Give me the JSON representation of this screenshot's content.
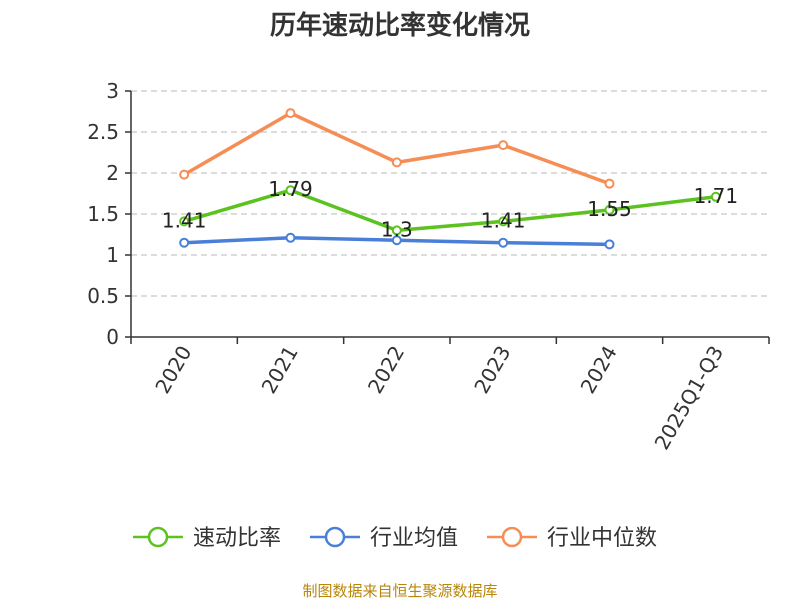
{
  "chart_data": {
    "type": "line",
    "title": "历年速动比率变化情况",
    "categories": [
      "2020",
      "2021",
      "2022",
      "2023",
      "2024",
      "2025Q1-Q3"
    ],
    "ylim": [
      0,
      3
    ],
    "yticks": [
      "0",
      "0.5",
      "1",
      "1.5",
      "2",
      "2.5",
      "3"
    ],
    "grid": true,
    "legend_position": "bottom",
    "series": [
      {
        "name": "速动比率",
        "color": "#5bc21f",
        "values": [
          1.41,
          1.79,
          1.3,
          1.41,
          1.55,
          1.71
        ],
        "labels": [
          "1.41",
          "1.79",
          "1.3",
          "1.41",
          "1.55",
          "1.71"
        ]
      },
      {
        "name": "行业均值",
        "color": "#4a7fd8",
        "values": [
          1.15,
          1.21,
          1.18,
          1.15,
          1.13,
          null
        ]
      },
      {
        "name": "行业中位数",
        "color": "#f58d55",
        "values": [
          1.98,
          2.73,
          2.13,
          2.34,
          1.87,
          null
        ]
      }
    ],
    "source": "制图数据来自恒生聚源数据库"
  }
}
